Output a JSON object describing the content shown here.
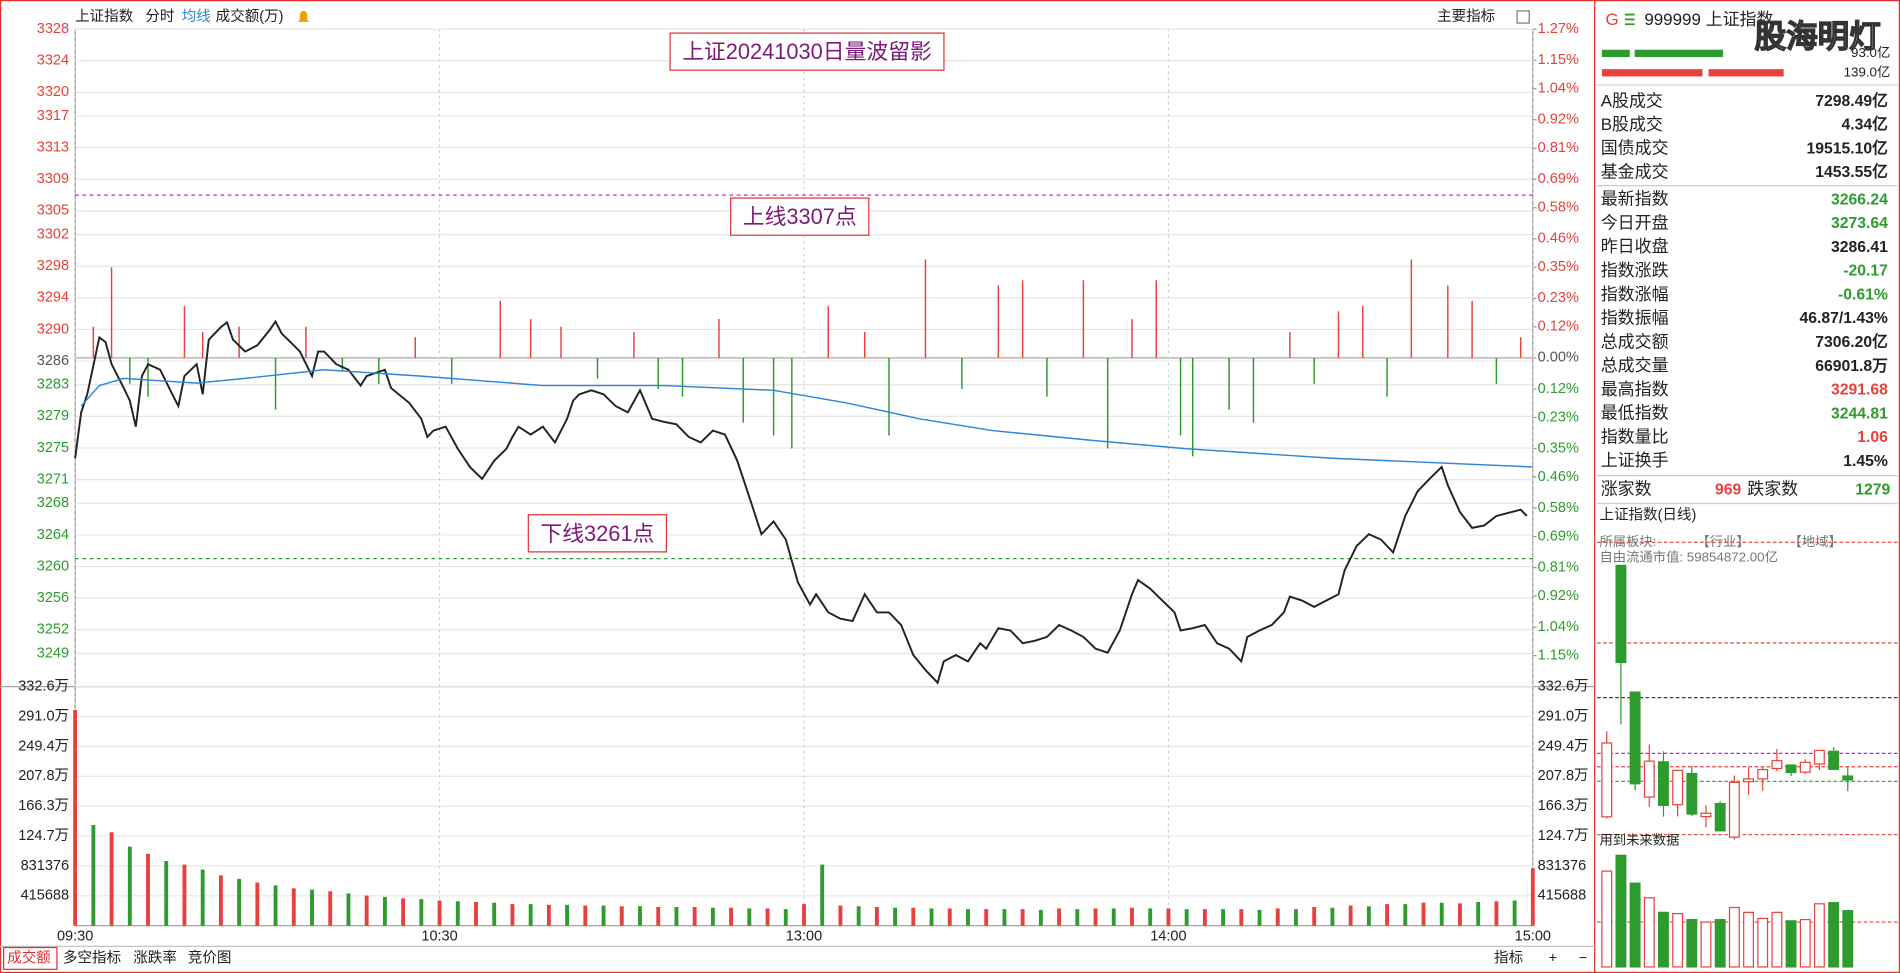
{
  "header": {
    "name": "上证指数",
    "indicator_menu": "主要指标"
  },
  "chart_data": [
    {
      "type": "line",
      "title": "上证20241030日量波留影",
      "xlim": [
        0,
        240
      ],
      "ylim": [
        3244.8,
        3328
      ],
      "y2lim": [
        -1.27,
        1.27
      ],
      "grid": true,
      "up_color": "#e8413c",
      "down_color": "#2e9b2e",
      "yticks": [
        3328,
        3324,
        3320,
        3317,
        3313,
        3309,
        3305,
        3302,
        3298,
        3294,
        3290,
        3286,
        3283,
        3279,
        3275,
        3271,
        3268,
        3264,
        3260,
        3256,
        3252,
        3249
      ],
      "y2ticks": [
        {
          "value": 1.27,
          "label": "1.27%"
        },
        {
          "value": 1.15,
          "label": "1.15%"
        },
        {
          "value": 1.04,
          "label": "1.04%"
        },
        {
          "value": 0.92,
          "label": "0.92%"
        },
        {
          "value": 0.81,
          "label": "0.81%"
        },
        {
          "value": 0.69,
          "label": "0.69%"
        },
        {
          "value": 0.58,
          "label": "0.58%"
        },
        {
          "value": 0.46,
          "label": "0.46%"
        },
        {
          "value": 0.35,
          "label": "0.35%"
        },
        {
          "value": 0.23,
          "label": "0.23%"
        },
        {
          "value": 0.12,
          "label": "0.12%"
        },
        {
          "value": 0,
          "label": "0.00%"
        },
        {
          "value": -0.12,
          "label": "0.12%"
        },
        {
          "value": -0.23,
          "label": "0.23%"
        },
        {
          "value": -0.35,
          "label": "0.35%"
        },
        {
          "value": -0.46,
          "label": "0.46%"
        },
        {
          "value": -0.58,
          "label": "0.58%"
        },
        {
          "value": -0.69,
          "label": "0.69%"
        },
        {
          "value": -0.81,
          "label": "0.81%"
        },
        {
          "value": -0.92,
          "label": "0.92%"
        },
        {
          "value": -1.04,
          "label": "1.04%"
        },
        {
          "value": -1.15,
          "label": "1.15%"
        }
      ],
      "series": [
        {
          "type": "bar",
          "axis": "y2",
          "color": "#e8413c",
          "negative_color": "#2e9b2e",
          "x": [
            3,
            6,
            9,
            12,
            18,
            21,
            27,
            33,
            38,
            44,
            50,
            56,
            62,
            70,
            75,
            80,
            86,
            92,
            96,
            100,
            106,
            110,
            115,
            118,
            124,
            130,
            134,
            140,
            146,
            152,
            156,
            160,
            166,
            170,
            174,
            178,
            182,
            184,
            190,
            194,
            200,
            204,
            208,
            212,
            216,
            220,
            226,
            230,
            234,
            238
          ],
          "values": [
            0.12,
            0.35,
            -0.1,
            -0.15,
            0.2,
            0.1,
            0.12,
            -0.2,
            0.12,
            -0.05,
            -0.1,
            0.08,
            -0.1,
            0.22,
            0.15,
            0.12,
            -0.08,
            0.1,
            -0.12,
            -0.15,
            0.15,
            -0.25,
            -0.3,
            -0.35,
            0.2,
            0.1,
            -0.3,
            0.38,
            -0.12,
            0.28,
            0.3,
            -0.15,
            0.3,
            -0.35,
            0.15,
            0.3,
            -0.3,
            -0.38,
            -0.2,
            -0.25,
            0.1,
            -0.1,
            0.18,
            0.2,
            -0.15,
            0.38,
            0.28,
            0.22,
            -0.1,
            0.08
          ]
        },
        {
          "name": "分时",
          "color": "#222222",
          "x": [
            0,
            1,
            2,
            4,
            5,
            6,
            8,
            9,
            10,
            11,
            12,
            14,
            16,
            17,
            18,
            20,
            21,
            22,
            24,
            25,
            26,
            28,
            30,
            32,
            33,
            34,
            36,
            37,
            39,
            40,
            41,
            43,
            45,
            47,
            48,
            51,
            52,
            55,
            57,
            58,
            59,
            61,
            63,
            65,
            67,
            69,
            71,
            72,
            73,
            75,
            77,
            79,
            81,
            82,
            83,
            85,
            87,
            89,
            91,
            93,
            95,
            97,
            99,
            101,
            103,
            105,
            107,
            109,
            111,
            113,
            115,
            117,
            119,
            121,
            122,
            124,
            126,
            128,
            130,
            132,
            134,
            136,
            138,
            140,
            142,
            143,
            145,
            147,
            149,
            150,
            152,
            154,
            156,
            158,
            160,
            162,
            164,
            166,
            168,
            170,
            172,
            174,
            175,
            177,
            179,
            181,
            182,
            184,
            186,
            188,
            190,
            192,
            193,
            195,
            197,
            199,
            200,
            202,
            204,
            206,
            208,
            209,
            211,
            213,
            215,
            217,
            219,
            221,
            223,
            225,
            226,
            228,
            230,
            232,
            234,
            236,
            238,
            239
          ],
          "values": [
            3273.7,
            3279.5,
            3281.8,
            3289.0,
            3288.4,
            3285.6,
            3282.6,
            3281.0,
            3277.7,
            3284.1,
            3285.6,
            3284.9,
            3281.8,
            3280.3,
            3284.1,
            3285.6,
            3281.8,
            3288.7,
            3290.3,
            3290.9,
            3288.7,
            3287.2,
            3288.0,
            3289.9,
            3291.0,
            3289.5,
            3288.0,
            3287.2,
            3284.1,
            3287.2,
            3287.2,
            3285.6,
            3284.9,
            3282.9,
            3284.1,
            3284.9,
            3282.6,
            3280.7,
            3278.7,
            3276.4,
            3277.2,
            3277.7,
            3274.9,
            3272.6,
            3271.1,
            3273.4,
            3274.9,
            3276.4,
            3277.7,
            3276.7,
            3277.7,
            3275.7,
            3278.7,
            3281.0,
            3281.8,
            3282.3,
            3281.8,
            3280.3,
            3279.5,
            3282.3,
            3278.7,
            3278.3,
            3278.0,
            3276.4,
            3275.7,
            3277.2,
            3276.7,
            3273.4,
            3268.8,
            3264.1,
            3265.7,
            3263.4,
            3258.0,
            3255.2,
            3256.5,
            3254.2,
            3253.4,
            3253.1,
            3256.5,
            3254.2,
            3254.2,
            3252.6,
            3248.8,
            3246.9,
            3245.3,
            3248.0,
            3248.8,
            3248.0,
            3250.3,
            3249.6,
            3252.2,
            3251.9,
            3250.3,
            3250.6,
            3251.1,
            3252.6,
            3251.9,
            3251.1,
            3249.6,
            3249.1,
            3251.9,
            3256.5,
            3258.3,
            3257.2,
            3255.7,
            3254.2,
            3251.9,
            3252.2,
            3252.6,
            3250.3,
            3249.6,
            3248.0,
            3251.1,
            3251.9,
            3252.6,
            3254.2,
            3256.2,
            3255.7,
            3254.9,
            3255.7,
            3256.5,
            3259.5,
            3262.6,
            3264.1,
            3263.4,
            3261.8,
            3266.4,
            3269.5,
            3271.1,
            3272.6,
            3270.3,
            3266.9,
            3264.9,
            3265.2,
            3266.4,
            3266.8,
            3267.2,
            3266.4
          ]
        },
        {
          "name": "均线",
          "color": "#2f86d8",
          "x": [
            1,
            4,
            8,
            20,
            28,
            41,
            57,
            77,
            97,
            115,
            127,
            139,
            151,
            167,
            183,
            207,
            240
          ],
          "values": [
            3280.3,
            3282.9,
            3283.8,
            3283.2,
            3283.8,
            3284.9,
            3284.1,
            3282.9,
            3282.9,
            3282.3,
            3280.7,
            3278.7,
            3277.2,
            3276.0,
            3274.9,
            3273.7,
            3272.6
          ]
        }
      ],
      "annotations": [
        {
          "text": "上线3307点",
          "value": 3307,
          "color": "#cc22cc"
        },
        {
          "text": "下线3261点",
          "value": 3261,
          "color": "#2e9b2e"
        }
      ]
    },
    {
      "type": "bar",
      "title": "成交额(万)",
      "xlim": [
        0,
        240
      ],
      "ylim": [
        0,
        3325504
      ],
      "grid": true,
      "xticks": [
        {
          "value": 0,
          "label": "09:30"
        },
        {
          "value": 60,
          "label": "10:30"
        },
        {
          "value": 120,
          "label": "13:00"
        },
        {
          "value": 180,
          "label": "14:00"
        },
        {
          "value": 240,
          "label": "15:00"
        }
      ],
      "yticks": [
        {
          "value": 3325504,
          "label": "332.6万"
        },
        {
          "value": 2909816,
          "label": "291.0万"
        },
        {
          "value": 2494128,
          "label": "249.4万"
        },
        {
          "value": 2078440,
          "label": "207.8万"
        },
        {
          "value": 1662752,
          "label": "166.3万"
        },
        {
          "value": 1247064,
          "label": "124.7万"
        },
        831376,
        415688
      ],
      "series": [
        {
          "color": "#e8413c",
          "x": [
            0,
            6,
            12,
            18,
            24,
            30,
            36,
            42,
            48,
            54,
            60,
            66,
            72,
            78,
            84,
            90,
            96,
            102,
            108,
            114,
            120,
            126,
            132,
            138,
            144,
            150,
            156,
            162,
            168,
            174,
            180,
            186,
            192,
            198,
            204,
            210,
            216,
            222,
            228,
            234,
            240
          ],
          "values": [
            3000000,
            1300000,
            1000000,
            850000,
            700000,
            600000,
            520000,
            480000,
            420000,
            380000,
            350000,
            330000,
            300000,
            290000,
            280000,
            270000,
            260000,
            260000,
            250000,
            240000,
            300000,
            280000,
            260000,
            250000,
            240000,
            230000,
            230000,
            240000,
            240000,
            250000,
            240000,
            230000,
            230000,
            240000,
            260000,
            280000,
            300000,
            320000,
            310000,
            340000,
            800000
          ]
        },
        {
          "color": "#2e9b2e",
          "x": [
            3,
            9,
            15,
            21,
            27,
            33,
            39,
            45,
            51,
            57,
            63,
            69,
            75,
            81,
            87,
            93,
            99,
            105,
            111,
            117,
            123,
            129,
            135,
            141,
            147,
            153,
            159,
            165,
            171,
            177,
            183,
            189,
            195,
            201,
            207,
            213,
            219,
            225,
            231,
            237
          ],
          "values": [
            1400000,
            1100000,
            900000,
            780000,
            650000,
            560000,
            500000,
            450000,
            400000,
            370000,
            340000,
            320000,
            300000,
            290000,
            280000,
            270000,
            260000,
            250000,
            240000,
            230000,
            850000,
            270000,
            250000,
            240000,
            230000,
            230000,
            220000,
            230000,
            240000,
            240000,
            230000,
            230000,
            220000,
            230000,
            250000,
            270000,
            300000,
            320000,
            330000,
            350000
          ]
        }
      ]
    },
    {
      "type": "candlestick",
      "title": "上证指数(日线)",
      "up_color": "#e8413c",
      "down_color": "#2e9b2e",
      "open": [
        3196.0,
        3674.4,
        3433.3,
        3233.7,
        3300.6,
        3219.1,
        3278.4,
        3196.4,
        3221.3,
        3157.4,
        3262.8,
        3268.2,
        3288.0,
        3294.5,
        3281.0,
        3296.6,
        3320.7,
        3273.6
      ],
      "high": [
        3358.6,
        3674.4,
        3433.3,
        3333.8,
        3320.6,
        3284.9,
        3292.4,
        3218.1,
        3225.8,
        3274.6,
        3290.3,
        3289.9,
        3325.0,
        3294.8,
        3305.3,
        3322.6,
        3328.6,
        3291.7
      ],
      "low": [
        3193.2,
        3371.8,
        3246.3,
        3215.0,
        3196.4,
        3196.8,
        3197.9,
        3176.1,
        3168.8,
        3152.8,
        3237.9,
        3245.6,
        3283.0,
        3273.6,
        3277.6,
        3284.7,
        3285.0,
        3244.8
      ],
      "close": [
        3336.5,
        3489.8,
        3258.9,
        3301.9,
        3217.7,
        3284.3,
        3201.3,
        3202.9,
        3169.4,
        3261.6,
        3268.1,
        3285.9,
        3302.8,
        3280.3,
        3299.7,
        3322.2,
        3286.4,
        3266.2
      ],
      "volume": [
        12450,
        14500,
        10880,
        8980,
        7090,
        6930,
        6150,
        5830,
        6150,
        7720,
        7090,
        6300,
        7090,
        5990,
        6150,
        8200,
        8350,
        7310
      ]
    }
  ],
  "side_panel": {
    "flag": "G",
    "code": "999999 上证指数",
    "watermark": "股海明灯",
    "buy_amount": "93.0亿",
    "sell_amount": "139.0亿",
    "trade_rows": [
      {
        "label": "A股成交",
        "value": "7298.49亿",
        "color": "#222"
      },
      {
        "label": "B股成交",
        "value": "4.34亿",
        "color": "#222"
      },
      {
        "label": "国债成交",
        "value": "19515.10亿",
        "color": "#222"
      },
      {
        "label": "基金成交",
        "value": "1453.55亿",
        "color": "#222"
      }
    ],
    "index_rows": [
      {
        "label": "最新指数",
        "value": "3266.24",
        "color": "#2e9b2e"
      },
      {
        "label": "今日开盘",
        "value": "3273.64",
        "color": "#2e9b2e"
      },
      {
        "label": "昨日收盘",
        "value": "3286.41",
        "color": "#222"
      },
      {
        "label": "指数涨跌",
        "value": "-20.17",
        "color": "#2e9b2e"
      },
      {
        "label": "指数涨幅",
        "value": "-0.61%",
        "color": "#2e9b2e"
      },
      {
        "label": "指数振幅",
        "value": "46.87/1.43%",
        "color": "#222"
      },
      {
        "label": "总成交额",
        "value": "7306.20亿",
        "color": "#222"
      },
      {
        "label": "总成交量",
        "value": "66901.8万",
        "color": "#222"
      },
      {
        "label": "最高指数",
        "value": "3291.68",
        "color": "#e8413c"
      },
      {
        "label": "最低指数",
        "value": "3244.81",
        "color": "#2e9b2e"
      },
      {
        "label": "指数量比",
        "value": "1.06",
        "color": "#e8413c"
      },
      {
        "label": "上证换手",
        "value": "1.45%",
        "color": "#222"
      }
    ],
    "breadth": {
      "up_label": "涨家数",
      "up": "969",
      "down_label": "跌家数",
      "down": "1279"
    },
    "sector": "所属板块:",
    "industry": "【行业】",
    "region": "【地域】",
    "float_cap": "自由流通市值: 59854872.00亿",
    "future_note": "用到未来数据"
  },
  "tabs": [
    "成交额",
    "多空指标",
    "涨跌率",
    "竞价图"
  ],
  "tools": [
    "指标",
    "+",
    "−"
  ]
}
